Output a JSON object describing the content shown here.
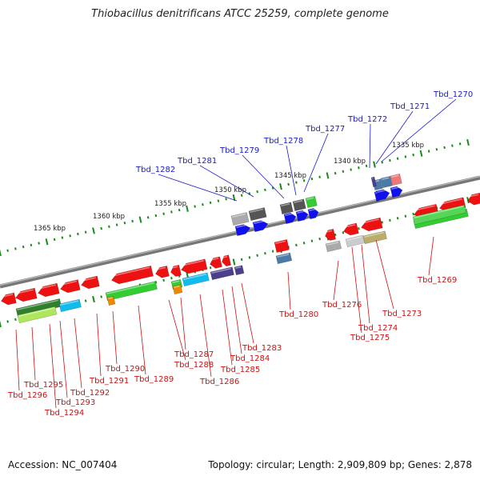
{
  "title": "Thiobacillus denitrificans ATCC 25259, complete genome",
  "footer": {
    "accession": "Accession: NC_007404",
    "stats": "Topology: circular; Length: 2,909,809 bp; Genes: 2,878"
  },
  "colors": {
    "backbone": "#777777",
    "tick": "#1a8a1a",
    "label_top": "#1a1acc",
    "label_bottom": "#cc1111",
    "red": "#ee1111",
    "green": "#33cc33",
    "blue": "#1111ee",
    "cyan": "#11bbee",
    "purple": "#4a3f8a",
    "darkgreen": "#2f7f2f",
    "gray": "#aaaaaa",
    "darkgray": "#555555",
    "olive": "#b8ad6a",
    "steel": "#4a7aa8",
    "pink": "#ee7777",
    "orange": "#ee8800"
  },
  "scale_labels": [
    "1335 kbp",
    "1340 kbp",
    "1345 kbp",
    "1350 kbp",
    "1355 kbp",
    "1360 kbp",
    "1365 kbp"
  ],
  "genes_top": [
    "Tbd_1270",
    "Tbd_1271",
    "Tbd_1272",
    "Tbd_1277",
    "Tbd_1278",
    "Tbd_1279",
    "Tbd_1281",
    "Tbd_1282"
  ],
  "genes_bottom": [
    "Tbd_1269",
    "Tbd_1273",
    "Tbd_1274",
    "Tbd_1275",
    "Tbd_1276",
    "Tbd_1280",
    "Tbd_1283",
    "Tbd_1284",
    "Tbd_1285",
    "Tbd_1286",
    "Tbd_1287",
    "Tbd_1288",
    "Tbd_1289",
    "Tbd_1290",
    "Tbd_1291",
    "Tbd_1292",
    "Tbd_1293",
    "Tbd_1294",
    "Tbd_1295",
    "Tbd_1296"
  ]
}
